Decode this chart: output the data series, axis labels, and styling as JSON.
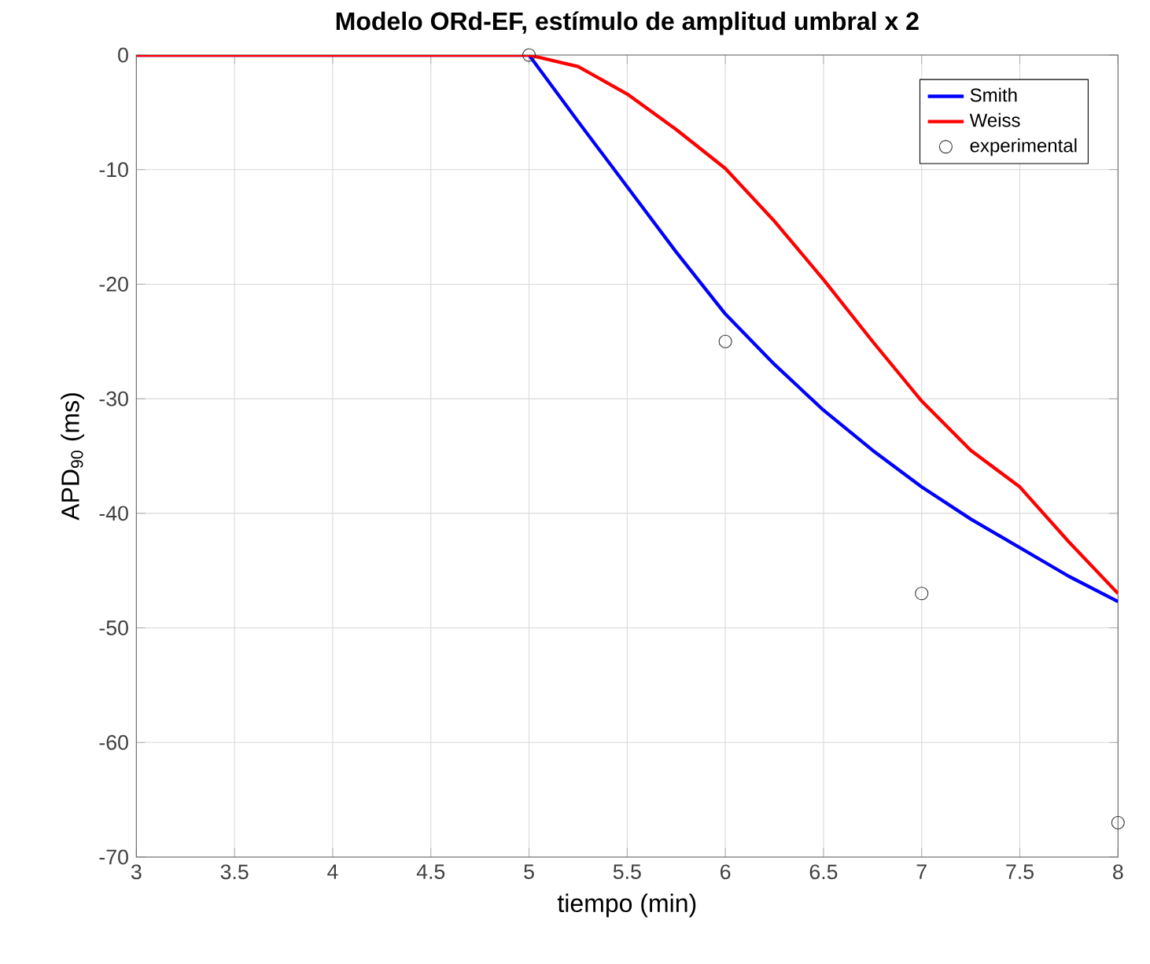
{
  "chart_data": {
    "type": "line",
    "title": "Modelo ORd-EF, estímulo de amplitud umbral x 2",
    "xlabel": "tiempo (min)",
    "ylabel": "APD$_{90}$ (ms)",
    "xlim": [
      3,
      8
    ],
    "xticks": [
      3,
      3.5,
      4,
      4.5,
      5,
      5.5,
      6,
      6.5,
      7,
      7.5,
      8
    ],
    "ylim": [
      -70,
      0
    ],
    "yticks": [
      -70,
      -60,
      -50,
      -40,
      -30,
      -20,
      -10,
      0
    ],
    "grid": true,
    "legend": "top right",
    "series": [
      {
        "name": "Smith",
        "color": "#0000ff",
        "x": [
          3,
          4,
          5,
          5.25,
          5.5,
          5.75,
          6,
          6.25,
          6.5,
          6.75,
          7,
          7.25,
          7.5,
          7.75,
          8
        ],
        "values": [
          0,
          0,
          0,
          -5.8,
          -11.5,
          -17.2,
          -22.6,
          -27,
          -31,
          -34.5,
          -37.7,
          -40.5,
          -43,
          -45.5,
          -47.7
        ]
      },
      {
        "name": "Weiss",
        "color": "#ff0000",
        "x": [
          3,
          4,
          5,
          5.25,
          5.5,
          5.75,
          6,
          6.25,
          6.5,
          6.75,
          7,
          7.25,
          7.5,
          7.75,
          8
        ],
        "values": [
          0,
          0,
          0,
          -1,
          -3.4,
          -6.5,
          -9.9,
          -14.5,
          -19.6,
          -25,
          -30.2,
          -34.5,
          -37.7,
          -42.5,
          -47
        ]
      },
      {
        "name": "experimental",
        "type": "scatter",
        "marker": "circle",
        "color": "#333333",
        "x": [
          5,
          6,
          7,
          8
        ],
        "values": [
          0,
          -25,
          -47,
          -67
        ]
      }
    ]
  }
}
